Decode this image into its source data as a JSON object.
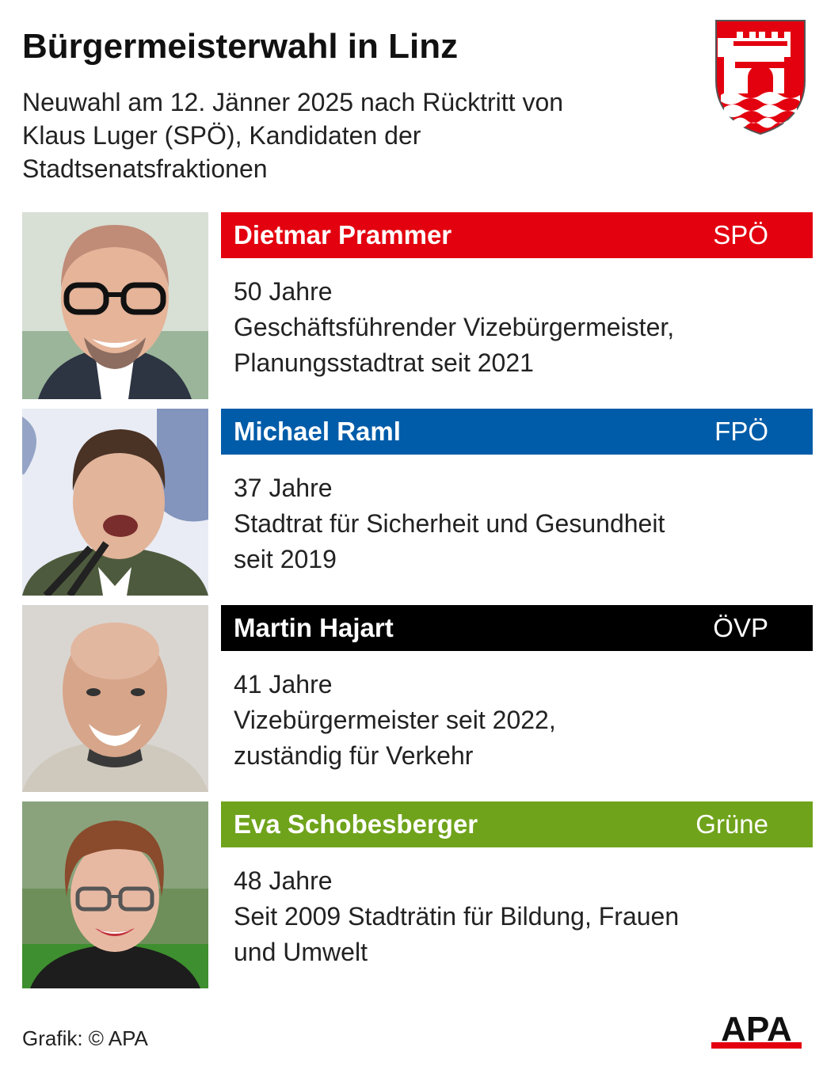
{
  "header": {
    "title": "Bürgermeisterwahl in Linz",
    "subtitle_lines": [
      "Neuwahl am 12. Jänner 2025 nach Rücktritt von",
      "Klaus Luger (SPÖ), Kandidaten der",
      "Stadtsenatsfraktionen"
    ],
    "crest_icon": "linz-coat-of-arms-icon"
  },
  "candidates": [
    {
      "name": "Dietmar Prammer",
      "party": "SPÖ",
      "color": "#e3000f",
      "lines": [
        "50 Jahre",
        "Geschäftsführender Vizebürgermeister,",
        "Planungsstadtrat seit 2021"
      ]
    },
    {
      "name": "Michael Raml",
      "party": "FPÖ",
      "color": "#005ca9",
      "lines": [
        "37 Jahre",
        "Stadtrat für Sicherheit und Gesundheit",
        "seit 2019"
      ]
    },
    {
      "name": "Martin Hajart",
      "party": "ÖVP",
      "color": "#000000",
      "lines": [
        "41 Jahre",
        "Vizebürgermeister seit 2022,",
        "zuständig für Verkehr"
      ]
    },
    {
      "name": "Eva Schobesberger",
      "party": "Grüne",
      "color": "#6fa31b",
      "lines": [
        "48 Jahre",
        "Seit 2009 Stadträtin für Bildung, Frauen",
        "und Umwelt"
      ]
    }
  ],
  "footer": {
    "credit": "Grafik: © APA",
    "logo_text": "APA",
    "logo_color": "#e3000f"
  }
}
